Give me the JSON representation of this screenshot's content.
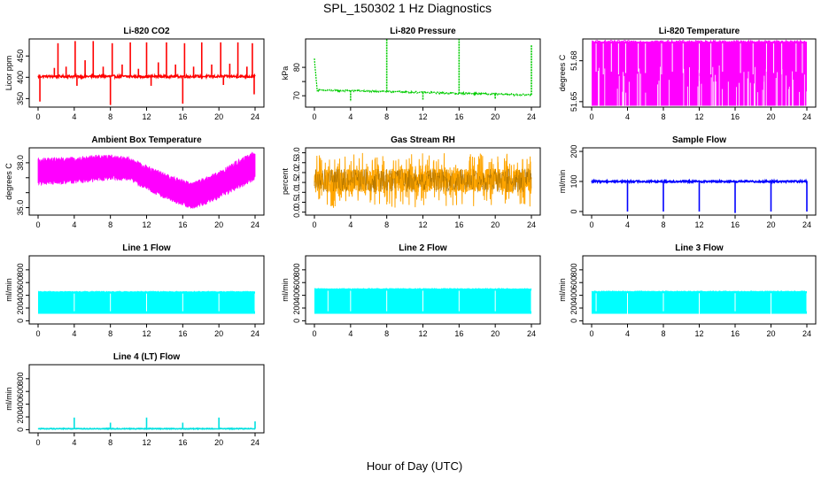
{
  "figure": {
    "title": "SPL_150302  1 Hz Diagnostics",
    "xlabel": "Hour of Day (UTC)"
  },
  "chart_data": [
    {
      "id": "co2",
      "type": "line",
      "title": "Li-820 CO2",
      "ylabel": "Licor ppm",
      "color": "#ff0000",
      "x_ticks": [
        0,
        4,
        8,
        12,
        16,
        20,
        24
      ],
      "xlim": [
        0,
        24
      ],
      "y_ticks": [
        350,
        400,
        450
      ],
      "y_tick_labels": [
        "350",
        "400",
        "450"
      ],
      "ylim": [
        330,
        490
      ],
      "style": "spiky-baseline",
      "baseline": 402,
      "noise": 3,
      "spikes": [
        {
          "x": 0.2,
          "y": 343
        },
        {
          "x": 1.8,
          "y": 422
        },
        {
          "x": 2.2,
          "y": 480
        },
        {
          "x": 3.1,
          "y": 425
        },
        {
          "x": 4.1,
          "y": 485
        },
        {
          "x": 4.3,
          "y": 380
        },
        {
          "x": 5.2,
          "y": 440
        },
        {
          "x": 6.1,
          "y": 485
        },
        {
          "x": 7.2,
          "y": 425
        },
        {
          "x": 8.0,
          "y": 335
        },
        {
          "x": 8.2,
          "y": 480
        },
        {
          "x": 9.3,
          "y": 430
        },
        {
          "x": 10.2,
          "y": 482
        },
        {
          "x": 11.1,
          "y": 420
        },
        {
          "x": 12.0,
          "y": 482
        },
        {
          "x": 12.5,
          "y": 380
        },
        {
          "x": 13.3,
          "y": 435
        },
        {
          "x": 14.2,
          "y": 482
        },
        {
          "x": 15.2,
          "y": 430
        },
        {
          "x": 16.0,
          "y": 338
        },
        {
          "x": 16.2,
          "y": 480
        },
        {
          "x": 17.2,
          "y": 425
        },
        {
          "x": 18.1,
          "y": 482
        },
        {
          "x": 19.2,
          "y": 430
        },
        {
          "x": 20.2,
          "y": 482
        },
        {
          "x": 20.5,
          "y": 382
        },
        {
          "x": 21.2,
          "y": 432
        },
        {
          "x": 22.1,
          "y": 482
        },
        {
          "x": 23.1,
          "y": 425
        },
        {
          "x": 23.7,
          "y": 480
        },
        {
          "x": 23.9,
          "y": 360
        }
      ]
    },
    {
      "id": "pressure",
      "type": "line",
      "title": "Li-820 Pressure",
      "ylabel": "kPa",
      "color": "#00cc00",
      "x_ticks": [
        0,
        4,
        8,
        12,
        16,
        20,
        24
      ],
      "xlim": [
        0,
        24
      ],
      "y_ticks": [
        70,
        75,
        80
      ],
      "y_tick_labels": [
        "70",
        "",
        "80"
      ],
      "ylim": [
        66,
        90
      ],
      "style": "declining-baseline",
      "points": [
        [
          0,
          83
        ],
        [
          0.3,
          72
        ],
        [
          8,
          71.5
        ],
        [
          16,
          70.8
        ],
        [
          24,
          70.3
        ]
      ],
      "noise": 0.3,
      "spikes": [
        {
          "x": 4.0,
          "y": 68
        },
        {
          "x": 8.0,
          "y": 90
        },
        {
          "x": 12.0,
          "y": 68.5
        },
        {
          "x": 16.0,
          "y": 90
        },
        {
          "x": 20.0,
          "y": 69
        },
        {
          "x": 24.0,
          "y": 88
        }
      ]
    },
    {
      "id": "li_temp",
      "type": "band",
      "title": "Li-820 Temperature",
      "ylabel": "degrees C",
      "color": "#ff00ff",
      "x_ticks": [
        0,
        4,
        8,
        12,
        16,
        20,
        24
      ],
      "xlim": [
        0,
        24
      ],
      "y_ticks": [
        51.65,
        51.68
      ],
      "y_tick_labels": [
        "51.65",
        "51.68"
      ],
      "ylim": [
        51.646,
        51.696
      ],
      "style": "band-with-gaps",
      "band": [
        51.647,
        51.694
      ],
      "gaps": [
        {
          "x": 0.5,
          "y": 51.672
        },
        {
          "x": 1.3,
          "y": 51.67
        },
        {
          "x": 2.2,
          "y": 51.672
        },
        {
          "x": 3.0,
          "y": 51.67
        },
        {
          "x": 3.8,
          "y": 51.671
        },
        {
          "x": 5.2,
          "y": 51.672
        },
        {
          "x": 6.0,
          "y": 51.671
        },
        {
          "x": 7.8,
          "y": 51.67
        },
        {
          "x": 9.0,
          "y": 51.672
        },
        {
          "x": 10.2,
          "y": 51.671
        },
        {
          "x": 12.0,
          "y": 51.671
        },
        {
          "x": 13.3,
          "y": 51.67
        },
        {
          "x": 14.6,
          "y": 51.672
        },
        {
          "x": 16.6,
          "y": 51.671
        },
        {
          "x": 18.0,
          "y": 51.67
        },
        {
          "x": 19.5,
          "y": 51.672
        },
        {
          "x": 20.3,
          "y": 51.671
        },
        {
          "x": 21.2,
          "y": 51.67
        },
        {
          "x": 22.8,
          "y": 51.672
        },
        {
          "x": 23.5,
          "y": 51.671
        }
      ]
    },
    {
      "id": "box_temp",
      "type": "band",
      "title": "Ambient Box Temperature",
      "ylabel": "degrees C",
      "color": "#ff00ff",
      "x_ticks": [
        0,
        4,
        8,
        12,
        16,
        20,
        24
      ],
      "xlim": [
        0,
        24
      ],
      "y_ticks": [
        35,
        36,
        37,
        38
      ],
      "y_tick_labels": [
        "35.0",
        "",
        "",
        "38.0"
      ],
      "ylim": [
        34.5,
        39.0
      ],
      "style": "oscillating-band",
      "center": [
        [
          0,
          37.4
        ],
        [
          4,
          37.5
        ],
        [
          8,
          37.7
        ],
        [
          10,
          37.6
        ],
        [
          12,
          37.0
        ],
        [
          15,
          36.2
        ],
        [
          17,
          35.8
        ],
        [
          18,
          36.0
        ],
        [
          20,
          36.5
        ],
        [
          22,
          37.2
        ],
        [
          24,
          37.8
        ]
      ],
      "half_width": [
        [
          0,
          0.9
        ],
        [
          6,
          0.9
        ],
        [
          10,
          0.8
        ],
        [
          16,
          0.9
        ],
        [
          24,
          1.0
        ]
      ]
    },
    {
      "id": "rh",
      "type": "band",
      "title": "Gas Stream RH",
      "ylabel": "percent",
      "color": "#ffa500",
      "edge_color": "#996600",
      "x_ticks": [
        0,
        4,
        8,
        12,
        16,
        20,
        24
      ],
      "xlim": [
        0,
        24
      ],
      "y_ticks": [
        0.0,
        0.5,
        1.0,
        1.5,
        2.0,
        2.5,
        3.0
      ],
      "y_tick_labels": [
        "0.0",
        "0.5",
        "1.0",
        "1.5",
        "2.0",
        "2.5",
        "3.0"
      ],
      "ylim": [
        -0.15,
        3.25
      ],
      "style": "dense-noise",
      "band": [
        0.2,
        3.0
      ],
      "inner": [
        1.0,
        2.2
      ]
    },
    {
      "id": "sample_flow",
      "type": "line",
      "title": "Sample Flow",
      "ylabel": "ml/min",
      "color": "#0000ff",
      "x_ticks": [
        0,
        4,
        8,
        12,
        16,
        20,
        24
      ],
      "xlim": [
        0,
        24
      ],
      "y_ticks": [
        0,
        100,
        200
      ],
      "y_tick_labels": [
        "0",
        "100",
        "200"
      ],
      "ylim": [
        -12,
        212
      ],
      "style": "flat-with-dips",
      "baseline": 100,
      "noise": 3,
      "spikes": [
        {
          "x": 4.0,
          "y": 0
        },
        {
          "x": 8.0,
          "y": 0
        },
        {
          "x": 12.0,
          "y": 0
        },
        {
          "x": 16.0,
          "y": -5
        },
        {
          "x": 20.0,
          "y": 0
        },
        {
          "x": 24.0,
          "y": 0
        }
      ]
    },
    {
      "id": "line1",
      "type": "band",
      "title": "Line 1 Flow",
      "ylabel": "ml/min",
      "color": "#00ffff",
      "x_ticks": [
        0,
        4,
        8,
        12,
        16,
        20,
        24
      ],
      "xlim": [
        0,
        24
      ],
      "y_ticks": [
        0,
        200,
        400,
        600,
        800
      ],
      "y_tick_labels": [
        "0",
        "200",
        "400",
        "600",
        "800"
      ],
      "ylim": [
        -50,
        1020
      ],
      "style": "band-with-gaps",
      "band": [
        110,
        455
      ],
      "gaps": [
        {
          "x": 4.0,
          "y": 150
        },
        {
          "x": 8.0,
          "y": 150
        },
        {
          "x": 12.0,
          "y": 150
        },
        {
          "x": 16.0,
          "y": 150
        },
        {
          "x": 20.0,
          "y": 150
        },
        {
          "x": 24.0,
          "y": 150
        }
      ]
    },
    {
      "id": "line2",
      "type": "band",
      "title": "Line 2 Flow",
      "ylabel": "ml/min",
      "color": "#00ffff",
      "x_ticks": [
        0,
        4,
        8,
        12,
        16,
        20,
        24
      ],
      "xlim": [
        0,
        24
      ],
      "y_ticks": [
        0,
        200,
        400,
        600,
        800
      ],
      "y_tick_labels": [
        "0",
        "200",
        "400",
        "600",
        "800"
      ],
      "ylim": [
        -50,
        1020
      ],
      "style": "band-with-gaps",
      "band": [
        110,
        500
      ],
      "gaps": [
        {
          "x": 1.5,
          "y": 150
        },
        {
          "x": 4.0,
          "y": 150
        },
        {
          "x": 8.0,
          "y": 150
        },
        {
          "x": 12.0,
          "y": 150
        },
        {
          "x": 16.0,
          "y": 150
        },
        {
          "x": 20.0,
          "y": 150
        },
        {
          "x": 24.0,
          "y": 150
        }
      ]
    },
    {
      "id": "line3",
      "type": "band",
      "title": "Line 3 Flow",
      "ylabel": "ml/min",
      "color": "#00ffff",
      "x_ticks": [
        0,
        4,
        8,
        12,
        16,
        20,
        24
      ],
      "xlim": [
        0,
        24
      ],
      "y_ticks": [
        0,
        200,
        400,
        600,
        800
      ],
      "y_tick_labels": [
        "0",
        "200",
        "400",
        "600",
        "800"
      ],
      "ylim": [
        -50,
        1020
      ],
      "style": "band-with-gaps",
      "band": [
        110,
        460
      ],
      "gaps": [
        {
          "x": 0.5,
          "y": 150
        },
        {
          "x": 4.0,
          "y": 80
        },
        {
          "x": 8.0,
          "y": 150
        },
        {
          "x": 12.0,
          "y": 80
        },
        {
          "x": 16.0,
          "y": 150
        },
        {
          "x": 20.0,
          "y": 80
        },
        {
          "x": 24.0,
          "y": 150
        }
      ]
    },
    {
      "id": "line4",
      "type": "line",
      "title": "Line 4 (LT) Flow",
      "ylabel": "ml/min",
      "color": "#00e0e0",
      "x_ticks": [
        0,
        4,
        8,
        12,
        16,
        20,
        24
      ],
      "xlim": [
        0,
        24
      ],
      "y_ticks": [
        0,
        200,
        400,
        600,
        800
      ],
      "y_tick_labels": [
        "0",
        "200",
        "400",
        "600",
        "800"
      ],
      "ylim": [
        -50,
        1020
      ],
      "style": "flat-with-dips",
      "baseline": 15,
      "noise": 6,
      "spikes": [
        {
          "x": 4.0,
          "y": 190
        },
        {
          "x": 8.0,
          "y": 110
        },
        {
          "x": 12.0,
          "y": 190
        },
        {
          "x": 16.0,
          "y": 110
        },
        {
          "x": 20.0,
          "y": 190
        },
        {
          "x": 24.0,
          "y": 130
        }
      ]
    }
  ]
}
